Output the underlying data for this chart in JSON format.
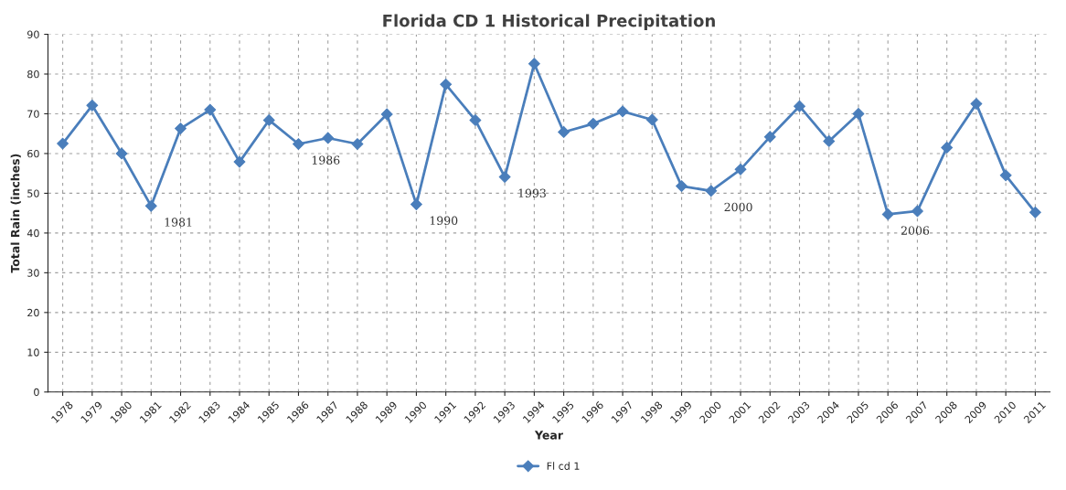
{
  "chart_data": {
    "type": "line",
    "title": "Florida CD 1 Historical Precipitation",
    "xlabel": "Year",
    "ylabel": "Total Rain (inches)",
    "categories": [
      "1978",
      "1979",
      "1980",
      "1981",
      "1982",
      "1983",
      "1984",
      "1985",
      "1986",
      "1987",
      "1988",
      "1989",
      "1990",
      "1991",
      "1992",
      "1993",
      "1994",
      "1995",
      "1996",
      "1997",
      "1998",
      "1999",
      "2000",
      "2001",
      "2002",
      "2003",
      "2004",
      "2005",
      "2006",
      "2007",
      "2008",
      "2009",
      "2010",
      "2011"
    ],
    "series": [
      {
        "name": "Fl cd 1",
        "color": "#4a7ebb",
        "values": [
          62.5,
          72.1,
          60.0,
          46.8,
          66.3,
          71.0,
          57.9,
          68.4,
          62.4,
          63.9,
          62.4,
          69.9,
          47.2,
          77.4,
          68.4,
          54.1,
          82.6,
          65.4,
          67.5,
          70.6,
          68.5,
          51.8,
          50.6,
          56.0,
          64.2,
          71.9,
          63.1,
          70.0,
          44.7,
          45.5,
          61.5,
          72.5,
          54.5,
          45.2
        ]
      }
    ],
    "ylim": [
      0,
      90
    ],
    "yticks": [
      0,
      10,
      20,
      30,
      40,
      50,
      60,
      70,
      80,
      90
    ],
    "annotations": [
      {
        "text": "1981",
        "x": "1981",
        "y": 46.8
      },
      {
        "text": "1986",
        "x": "1986",
        "y": 62.4
      },
      {
        "text": "1990",
        "x": "1990",
        "y": 47.2
      },
      {
        "text": "1993",
        "x": "1993",
        "y": 54.1
      },
      {
        "text": "2000",
        "x": "2000",
        "y": 50.6
      },
      {
        "text": "2006",
        "x": "2006",
        "y": 44.7
      }
    ],
    "grid": true,
    "legend": "bottom",
    "marker": "diamond",
    "line_style": "solid"
  }
}
